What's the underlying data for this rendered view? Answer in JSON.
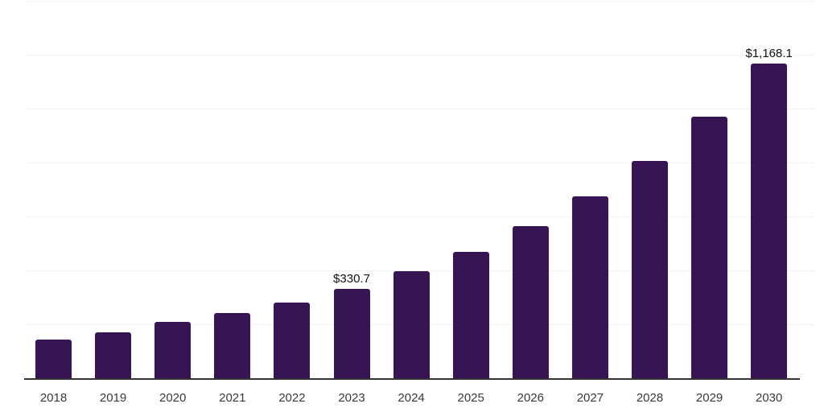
{
  "chart_data": {
    "type": "bar",
    "title": "",
    "xlabel": "",
    "ylabel": "",
    "categories": [
      "2018",
      "2019",
      "2020",
      "2021",
      "2022",
      "2023",
      "2024",
      "2025",
      "2026",
      "2027",
      "2028",
      "2029",
      "2030"
    ],
    "values": [
      144,
      171,
      208,
      243,
      280,
      330.7,
      397,
      470,
      565,
      674,
      807,
      971,
      1168.1
    ],
    "data_labels": [
      null,
      null,
      null,
      null,
      null,
      "$330.7",
      null,
      null,
      null,
      null,
      null,
      null,
      "$1,168.1"
    ],
    "ylim": [
      0,
      1400
    ],
    "y_gridline_interval": 200,
    "grid": "horizontal-only",
    "legend": "none",
    "colors": {
      "bar": "#371453",
      "gridline": "#f2f2f2",
      "axis_line": "#333333",
      "tick_label": "#3a3a3a",
      "data_label": "#111111",
      "background": "#ffffff"
    }
  }
}
